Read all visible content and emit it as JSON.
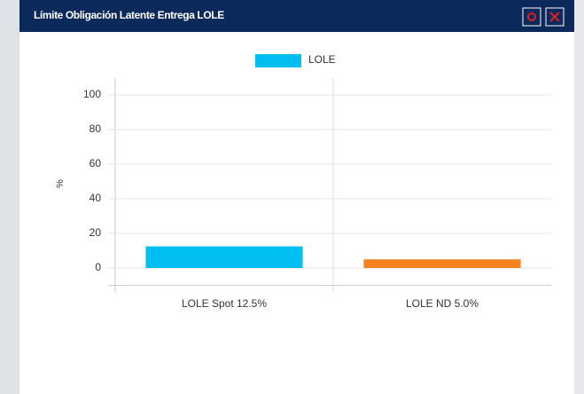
{
  "window": {
    "title": "Límite Obligación Latente Entrega LOLE"
  },
  "chart_data": {
    "type": "bar",
    "categories": [
      "LOLE Spot 12.5%",
      "LOLE ND 5.0%"
    ],
    "series": [
      {
        "name": "LOLE",
        "colors": [
          "#00bff0",
          "#f5821f"
        ],
        "values": [
          12.5,
          5.0
        ]
      }
    ],
    "y_label": "%",
    "ylim": [
      -10,
      110
    ],
    "yticks": [
      0,
      20,
      40,
      60,
      80,
      100
    ],
    "grid": true
  }
}
